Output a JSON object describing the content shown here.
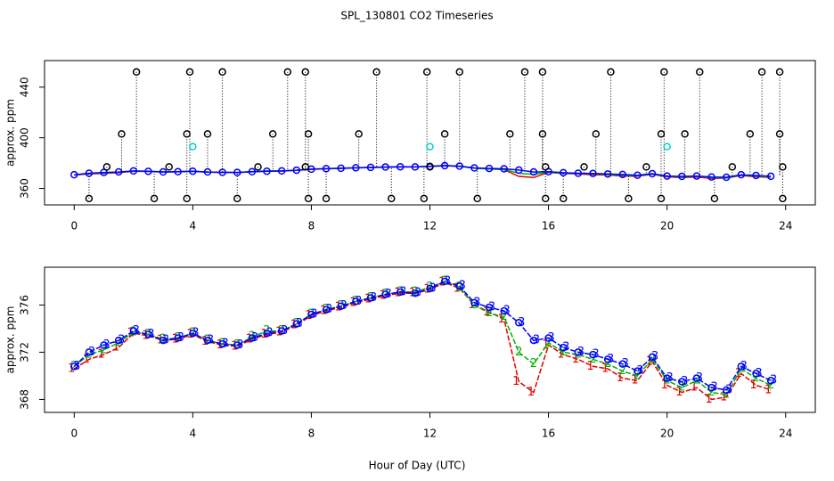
{
  "chart_data": [
    {
      "type": "scatter",
      "title": "SPL_130801  CO2 Timeseries",
      "y_label": "approx. ppm",
      "xlim": [
        -1,
        25
      ],
      "xticks": [
        0,
        4,
        8,
        12,
        16,
        20,
        24
      ],
      "ylim": [
        347,
        461
      ],
      "yticks": [
        360,
        400,
        440
      ],
      "x": [
        0,
        0.5,
        1,
        1.5,
        2,
        2.5,
        3,
        3.5,
        4,
        4.5,
        5,
        5.5,
        6,
        6.5,
        7,
        7.5,
        8,
        8.5,
        9,
        9.5,
        10,
        10.5,
        11,
        11.5,
        12,
        12.5,
        13,
        13.5,
        14,
        14.5,
        15,
        15.5,
        16,
        16.5,
        17,
        17.5,
        18,
        18.5,
        19,
        19.5,
        20,
        20.5,
        21,
        21.5,
        22,
        22.5,
        23,
        23.5
      ],
      "series": [
        {
          "color": "#e00000",
          "line": true,
          "values": [
            370.6,
            371.4,
            371.8,
            372.4,
            373.6,
            373.4,
            373.0,
            373.1,
            373.5,
            372.9,
            372.6,
            372.5,
            373.1,
            373.5,
            373.7,
            374.3,
            375.1,
            375.5,
            375.8,
            376.2,
            376.5,
            376.8,
            377.0,
            377.0,
            377.3,
            377.9,
            377.4,
            376.0,
            375.4,
            374.8,
            369.5,
            368.6,
            372.6,
            371.8,
            371.4,
            370.8,
            370.6,
            369.8,
            369.6,
            371.2,
            369.2,
            368.6,
            369.0,
            368.0,
            368.2,
            370.2,
            369.2,
            368.8
          ]
        },
        {
          "color": "#00b000",
          "line": true,
          "values": [
            370.8,
            371.8,
            372.2,
            372.8,
            373.7,
            373.5,
            373.1,
            373.2,
            373.6,
            373.0,
            372.7,
            372.6,
            373.3,
            373.8,
            373.8,
            374.4,
            375.2,
            375.6,
            375.9,
            376.3,
            376.6,
            376.9,
            377.1,
            377.1,
            377.5,
            378.0,
            377.5,
            376.0,
            375.3,
            375.0,
            372.0,
            371.0,
            372.8,
            372.0,
            371.8,
            371.4,
            371.0,
            370.4,
            370.0,
            371.4,
            369.6,
            369.0,
            369.6,
            368.6,
            368.4,
            370.6,
            369.8,
            369.2
          ]
        },
        {
          "color": "#0000ff",
          "line": true,
          "marker": "circle",
          "values": [
            370.8,
            372.0,
            372.6,
            373.0,
            373.8,
            373.5,
            373.0,
            373.2,
            373.6,
            373.0,
            372.7,
            372.6,
            373.2,
            373.6,
            373.8,
            374.4,
            375.2,
            375.6,
            375.9,
            376.3,
            376.6,
            376.9,
            377.1,
            377.0,
            377.4,
            378.0,
            377.6,
            376.2,
            375.8,
            375.5,
            374.5,
            373.0,
            373.2,
            372.4,
            372.0,
            371.8,
            371.4,
            371.0,
            370.4,
            371.6,
            369.8,
            369.5,
            369.8,
            369.0,
            368.8,
            370.8,
            370.2,
            369.6
          ]
        },
        {
          "color": "#000000",
          "marker": "circle",
          "stems": true,
          "x": [
            2.1,
            3.9,
            5.0,
            7.2,
            7.8,
            10.2,
            11.9,
            13.0,
            15.2,
            15.8,
            18.1,
            19.9,
            21.1,
            23.2,
            23.8,
            1.6,
            3.8,
            4.5,
            6.7,
            7.9,
            9.6,
            12.5,
            14.7,
            15.8,
            17.6,
            19.8,
            20.6,
            22.8,
            23.8,
            0.5,
            2.7,
            3.8,
            5.5,
            7.9,
            8.5,
            10.7,
            11.8,
            13.6,
            15.9,
            16.5,
            18.7,
            19.8,
            21.6,
            23.9,
            1.1,
            3.2,
            6.2,
            7.8,
            12.0,
            15.9,
            17.2,
            19.3,
            22.2,
            23.9
          ],
          "values": [
            452,
            452,
            452,
            452,
            452,
            452,
            452,
            452,
            452,
            452,
            452,
            452,
            452,
            452,
            452,
            403,
            403,
            403,
            403,
            403,
            403,
            403,
            403,
            403,
            403,
            403,
            403,
            403,
            403,
            352,
            352,
            352,
            352,
            352,
            352,
            352,
            352,
            352,
            352,
            352,
            352,
            352,
            352,
            352,
            377,
            377,
            377,
            377,
            377,
            377,
            377,
            377,
            377,
            377
          ]
        },
        {
          "color": "#00d0d0",
          "marker": "circle",
          "x": [
            4.0,
            12.0,
            20.0
          ],
          "values": [
            393,
            393,
            393
          ]
        }
      ]
    },
    {
      "type": "scatter",
      "y_label": "approx. ppm",
      "x_label": "Hour of Day (UTC)",
      "xlim": [
        -1,
        25
      ],
      "xticks": [
        0,
        4,
        8,
        12,
        16,
        20,
        24
      ],
      "ylim": [
        366.9,
        379.2
      ],
      "yticks": [
        368,
        372,
        376
      ],
      "x": [
        0,
        0.5,
        1,
        1.5,
        2,
        2.5,
        3,
        3.5,
        4,
        4.5,
        5,
        5.5,
        6,
        6.5,
        7,
        7.5,
        8,
        8.5,
        9,
        9.5,
        10,
        10.5,
        11,
        11.5,
        12,
        12.5,
        13,
        13.5,
        14,
        14.5,
        15,
        15.5,
        16,
        16.5,
        17,
        17.5,
        18,
        18.5,
        19,
        19.5,
        20,
        20.5,
        21,
        21.5,
        22,
        22.5,
        23,
        23.5
      ],
      "series": [
        {
          "color": "#e00000",
          "line": true,
          "symbol": "1",
          "values": [
            370.6,
            371.4,
            371.8,
            372.4,
            373.6,
            373.4,
            373.0,
            373.1,
            373.5,
            372.9,
            372.6,
            372.5,
            373.1,
            373.5,
            373.7,
            374.3,
            375.1,
            375.5,
            375.8,
            376.2,
            376.5,
            376.8,
            377.0,
            377.0,
            377.3,
            377.9,
            377.4,
            376.0,
            375.4,
            374.8,
            369.5,
            368.6,
            372.6,
            371.8,
            371.4,
            370.8,
            370.6,
            369.8,
            369.6,
            371.2,
            369.2,
            368.6,
            369.0,
            368.0,
            368.2,
            370.2,
            369.2,
            368.8
          ]
        },
        {
          "color": "#00b000",
          "line": true,
          "symbol": "2",
          "values": [
            370.8,
            371.8,
            372.2,
            372.8,
            373.7,
            373.5,
            373.1,
            373.2,
            373.6,
            373.0,
            372.7,
            372.6,
            373.3,
            373.8,
            373.8,
            374.4,
            375.2,
            375.6,
            375.9,
            376.3,
            376.6,
            376.9,
            377.1,
            377.1,
            377.5,
            378.0,
            377.5,
            376.0,
            375.3,
            375.0,
            372.0,
            371.0,
            372.8,
            372.0,
            371.8,
            371.4,
            371.0,
            370.4,
            370.0,
            371.4,
            369.6,
            369.0,
            369.6,
            368.6,
            368.4,
            370.6,
            369.8,
            369.2
          ]
        },
        {
          "color": "#0000ff",
          "line": true,
          "symbol": "3",
          "marker": "circle",
          "values": [
            370.8,
            372.0,
            372.6,
            373.0,
            373.8,
            373.5,
            373.0,
            373.2,
            373.6,
            373.0,
            372.7,
            372.6,
            373.2,
            373.6,
            373.8,
            374.4,
            375.2,
            375.6,
            375.9,
            376.3,
            376.6,
            376.9,
            377.1,
            377.0,
            377.4,
            378.0,
            377.6,
            376.2,
            375.8,
            375.5,
            374.5,
            373.0,
            373.2,
            372.4,
            372.0,
            371.8,
            371.4,
            371.0,
            370.4,
            371.6,
            369.8,
            369.5,
            369.8,
            369.0,
            368.8,
            370.8,
            370.2,
            369.6
          ]
        }
      ]
    }
  ]
}
